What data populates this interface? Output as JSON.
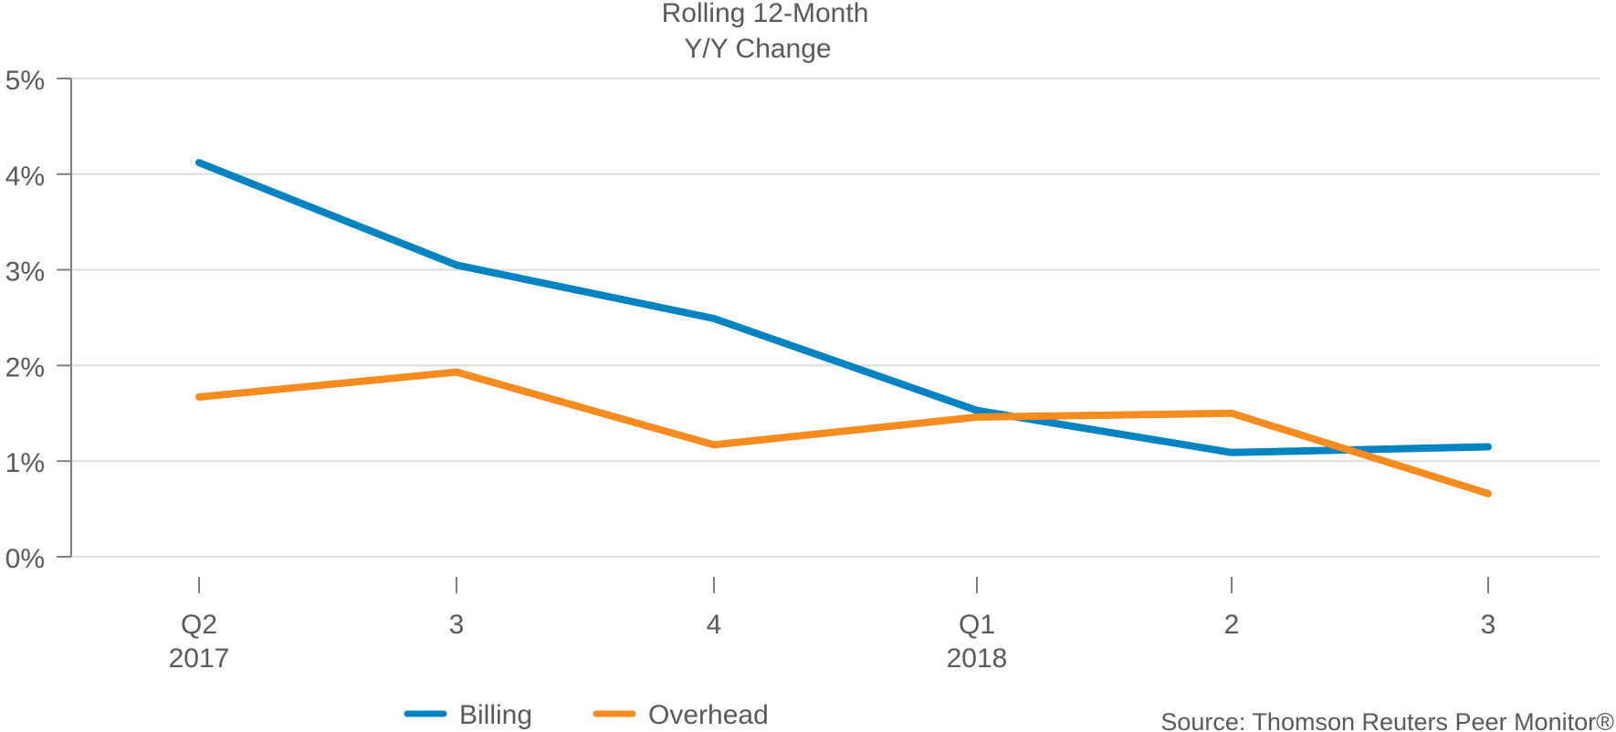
{
  "chart_data": {
    "type": "line",
    "title": [
      "Rolling 12-Month",
      "Y/Y Change"
    ],
    "xlabel": "",
    "ylabel": "",
    "categories": [
      {
        "line1": "Q2",
        "line2": "2017"
      },
      {
        "line1": "3",
        "line2": ""
      },
      {
        "line1": "4",
        "line2": ""
      },
      {
        "line1": "Q1",
        "line2": "2018"
      },
      {
        "line1": "2",
        "line2": ""
      },
      {
        "line1": "3",
        "line2": ""
      }
    ],
    "ylim": [
      0,
      5
    ],
    "yticks": [
      0,
      1,
      2,
      3,
      4,
      5
    ],
    "ytick_labels": [
      "0%",
      "1%",
      "2%",
      "3%",
      "4%",
      "5%"
    ],
    "grid": true,
    "series": [
      {
        "name": "Billing",
        "color": "#0083c1",
        "values": [
          4.12,
          3.05,
          2.49,
          1.53,
          1.09,
          1.15
        ]
      },
      {
        "name": "Overhead",
        "color": "#f68b1f",
        "values": [
          1.67,
          1.93,
          1.17,
          1.46,
          1.5,
          0.66
        ]
      }
    ],
    "legend": {
      "position": "bottom",
      "entries": [
        "Billing",
        "Overhead"
      ]
    },
    "annotations": {
      "source": "Source: Thomson Reuters Peer Monitor®"
    }
  },
  "colors": {
    "axis": "#808080",
    "grid": "#dcdcdc",
    "text": "#58595b"
  }
}
